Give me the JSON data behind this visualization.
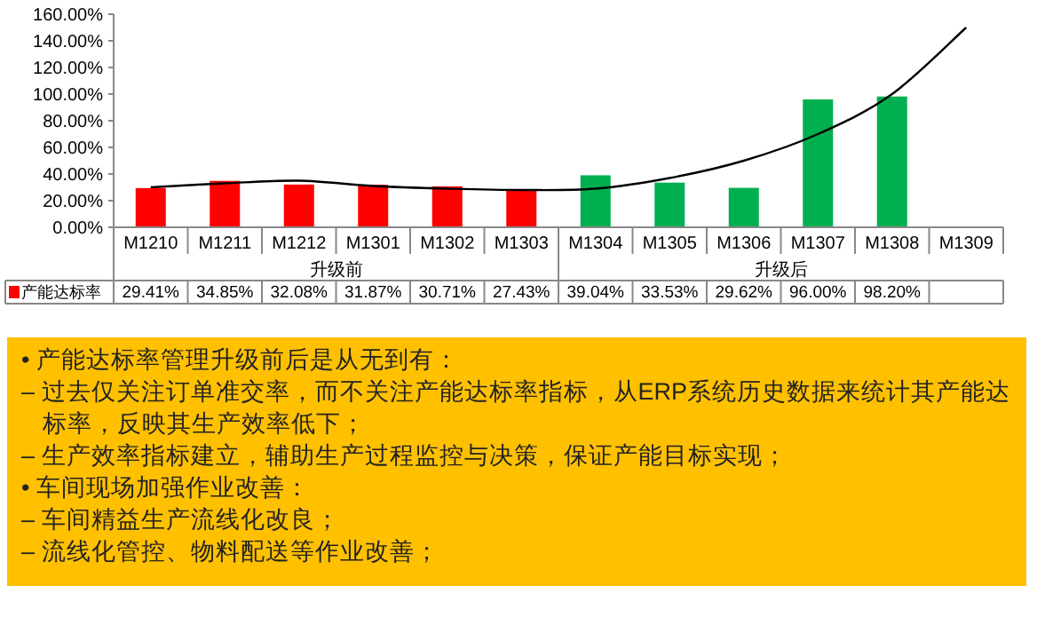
{
  "chart_data": {
    "type": "bar",
    "categories": [
      "M1210",
      "M1211",
      "M1212",
      "M1301",
      "M1302",
      "M1303",
      "M1304",
      "M1305",
      "M1306",
      "M1307",
      "M1308",
      "M1309"
    ],
    "ylim": [
      0,
      160
    ],
    "yticks": [
      {
        "value": 0,
        "label": "0.00%"
      },
      {
        "value": 20,
        "label": "20.00%"
      },
      {
        "value": 40,
        "label": "40.00%"
      },
      {
        "value": 60,
        "label": "60.00%"
      },
      {
        "value": 80,
        "label": "80.00%"
      },
      {
        "value": 100,
        "label": "100.00%"
      },
      {
        "value": 120,
        "label": "120.00%"
      },
      {
        "value": 140,
        "label": "140.00%"
      },
      {
        "value": 160,
        "label": "160.00%"
      }
    ],
    "series": [
      {
        "name": "产能达标率",
        "color": "#ff0000",
        "colors": [
          "#ff0000",
          "#ff0000",
          "#ff0000",
          "#ff0000",
          "#ff0000",
          "#ff0000",
          "#00b050",
          "#00b050",
          "#00b050",
          "#00b050",
          "#00b050",
          null
        ],
        "values": [
          29.41,
          34.85,
          32.08,
          31.87,
          30.71,
          27.43,
          39.04,
          33.53,
          29.62,
          96.0,
          98.2,
          null
        ],
        "value_labels": [
          "29.41%",
          "34.85%",
          "32.08%",
          "31.87%",
          "30.71%",
          "27.43%",
          "39.04%",
          "33.53%",
          "29.62%",
          "96.00%",
          "98.20%",
          null
        ]
      },
      {
        "type": "line",
        "color": "#000000",
        "values": [
          30,
          33,
          35,
          31,
          29,
          28,
          29,
          37,
          50,
          70,
          100,
          150
        ]
      }
    ],
    "annotations": [
      "升级前",
      "升级后",
      "• 产能达标率管理升级前后是从无到有：",
      "– 过去仅关注订单准交率，而不关注产能达标率指标，从ERP系统历史数据来统计其产能达标率，反映其生产效率低下；",
      "– 生产效率指标建立，辅助生产过程监控与决策，保证产能目标实现；",
      "• 车间现场加强作业改善：",
      "– 车间精益生产流线化改良；",
      "– 流线化管控、物料配送等作业改善；"
    ]
  }
}
